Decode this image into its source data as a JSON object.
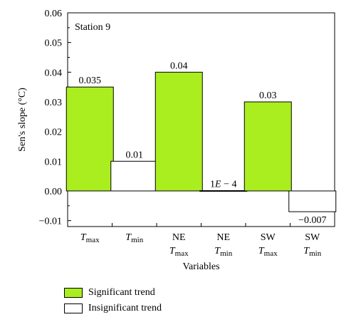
{
  "colors": {
    "significant": "#aaee1f",
    "insignificant": "#ffffff",
    "stroke": "#000000"
  },
  "chart_data": {
    "type": "bar",
    "annotation": "Station 9",
    "ylabel": "Sen's slope (°C)",
    "xlabel": "Variables",
    "ylim": [
      -0.012,
      0.06
    ],
    "yticks": [
      -0.01,
      0.0,
      0.01,
      0.02,
      0.03,
      0.04,
      0.05,
      0.06
    ],
    "ytick_labels": [
      "−0.01",
      "0.00",
      "0.01",
      "0.02",
      "0.03",
      "0.04",
      "0.05",
      "0.06"
    ],
    "grid": false,
    "legend_position": "bottom-left",
    "categories": [
      {
        "prefix": "",
        "base": "T",
        "sub": "max"
      },
      {
        "prefix": "",
        "base": "T",
        "sub": "min"
      },
      {
        "prefix": "NE",
        "base": "T",
        "sub": "max"
      },
      {
        "prefix": "NE",
        "base": "T",
        "sub": "min"
      },
      {
        "prefix": "SW",
        "base": "T",
        "sub": "max"
      },
      {
        "prefix": "SW",
        "base": "T",
        "sub": "min"
      }
    ],
    "values": [
      0.035,
      0.01,
      0.04,
      0.0001,
      0.03,
      -0.007
    ],
    "value_labels": [
      "0.035",
      "0.01",
      "0.04",
      "1E − 4",
      "0.03",
      "−0.007"
    ],
    "significant": [
      true,
      false,
      true,
      false,
      true,
      false
    ],
    "legend": [
      {
        "label": "Significant trend",
        "kind": "significant"
      },
      {
        "label": "Insignificant trend",
        "kind": "insignificant"
      }
    ]
  }
}
